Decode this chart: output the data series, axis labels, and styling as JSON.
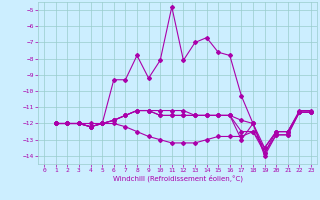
{
  "title": "",
  "xlabel": "Windchill (Refroidissement éolien,°C)",
  "xlim": [
    -0.5,
    23.5
  ],
  "ylim": [
    -14.5,
    -4.5
  ],
  "yticks": [
    -14,
    -13,
    -12,
    -11,
    -10,
    -9,
    -8,
    -7,
    -6,
    -5
  ],
  "xticks": [
    0,
    1,
    2,
    3,
    4,
    5,
    6,
    7,
    8,
    9,
    10,
    11,
    12,
    13,
    14,
    15,
    16,
    17,
    18,
    19,
    20,
    21,
    22,
    23
  ],
  "bg_color": "#cceeff",
  "grid_color": "#99cccc",
  "line_color": "#aa00aa",
  "line1_x": [
    1,
    2,
    3,
    4,
    5,
    6,
    7,
    8,
    9,
    10,
    11,
    12,
    13,
    14,
    15,
    16,
    17,
    18,
    19,
    20,
    21,
    22,
    23
  ],
  "line1_y": [
    -12,
    -12,
    -12,
    -12.2,
    -12,
    -9.3,
    -9.3,
    -7.8,
    -9.2,
    -8.1,
    -4.8,
    -8.1,
    -7.0,
    -6.7,
    -7.6,
    -7.8,
    -10.3,
    -12.0,
    -13.8,
    -12.5,
    -12.5,
    -11.3,
    -11.3
  ],
  "line2_x": [
    1,
    2,
    3,
    4,
    5,
    6,
    7,
    8,
    9,
    10,
    11,
    12,
    13,
    14,
    15,
    16,
    17,
    18,
    19,
    20,
    21,
    22,
    23
  ],
  "line2_y": [
    -12,
    -12,
    -12,
    -12.2,
    -12.0,
    -11.8,
    -11.5,
    -11.2,
    -11.2,
    -11.2,
    -11.2,
    -11.2,
    -11.5,
    -11.5,
    -11.5,
    -11.5,
    -13.0,
    -12.0,
    -14.0,
    -12.7,
    -12.7,
    -11.3,
    -11.3
  ],
  "line3_x": [
    1,
    2,
    3,
    4,
    5,
    6,
    7,
    8,
    9,
    10,
    11,
    12,
    13,
    14,
    15,
    16,
    17,
    18,
    19,
    20,
    21,
    22,
    23
  ],
  "line3_y": [
    -12,
    -12,
    -12,
    -12.2,
    -12.0,
    -11.8,
    -11.5,
    -11.2,
    -11.2,
    -11.5,
    -11.5,
    -11.5,
    -11.5,
    -11.5,
    -11.5,
    -11.5,
    -12.5,
    -12.5,
    -13.5,
    -12.5,
    -12.5,
    -11.3,
    -11.3
  ],
  "line4_x": [
    1,
    2,
    3,
    4,
    5,
    6,
    7,
    8,
    9,
    10,
    11,
    12,
    13,
    14,
    15,
    16,
    17,
    18,
    19,
    20,
    21,
    22,
    23
  ],
  "line4_y": [
    -12,
    -12,
    -12,
    -12.0,
    -12.0,
    -11.8,
    -11.5,
    -11.2,
    -11.2,
    -11.5,
    -11.5,
    -11.5,
    -11.5,
    -11.5,
    -11.5,
    -11.5,
    -11.8,
    -12.0,
    -13.5,
    -12.5,
    -12.5,
    -11.2,
    -11.2
  ],
  "line5_x": [
    1,
    2,
    3,
    4,
    5,
    6,
    7,
    8,
    9,
    10,
    11,
    12,
    13,
    14,
    15,
    16,
    17,
    18,
    19,
    20,
    21,
    22,
    23
  ],
  "line5_y": [
    -12,
    -12,
    -12,
    -12.2,
    -12,
    -12.0,
    -12.2,
    -12.5,
    -12.8,
    -13.0,
    -13.2,
    -13.2,
    -13.2,
    -13.0,
    -12.8,
    -12.8,
    -12.8,
    -12.5,
    -13.8,
    -12.7,
    -12.7,
    -11.3,
    -11.3
  ]
}
